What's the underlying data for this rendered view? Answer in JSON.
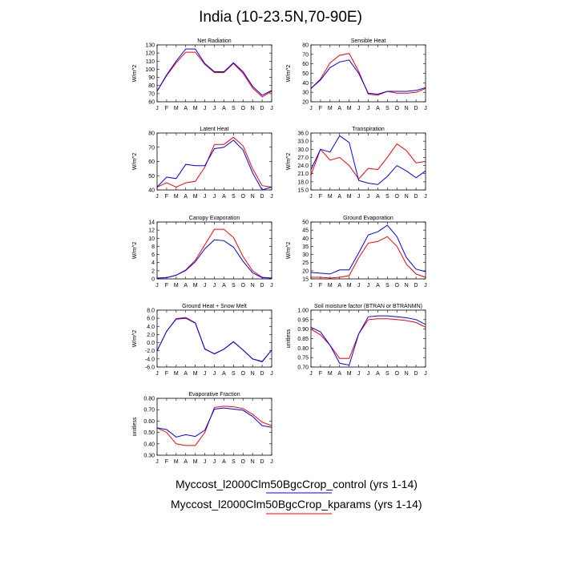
{
  "title": "India (10-23.5N,70-90E)",
  "series_colors": {
    "control": "#0000ff",
    "kparams": "#ff0000"
  },
  "legend": {
    "control": "Myccost_l2000Clm50BgcCrop_control (yrs 1-14)",
    "kparams": "Myccost_l2000Clm50BgcCrop_kparams (yrs 1-14)"
  },
  "chart_data": [
    {
      "type": "line",
      "title": "Net Radiation",
      "ylabel": "W/m^2",
      "x": [
        "J",
        "F",
        "M",
        "A",
        "M",
        "J",
        "J",
        "A",
        "S",
        "O",
        "N",
        "D",
        "J"
      ],
      "ylim": [
        60,
        130
      ],
      "yticks": [
        "60",
        "70",
        "80",
        "90",
        "100",
        "110",
        "120",
        "130"
      ],
      "series": [
        {
          "name": "control",
          "values": [
            73,
            93,
            110,
            125,
            125,
            107,
            97,
            97,
            108,
            97,
            79,
            68,
            74
          ]
        },
        {
          "name": "kparams",
          "values": [
            73,
            92,
            108,
            121,
            121,
            106,
            96,
            96,
            107,
            95,
            77,
            66,
            73
          ]
        }
      ]
    },
    {
      "type": "line",
      "title": "Sensible Heat",
      "ylabel": "W/m^2",
      "x": [
        "J",
        "F",
        "M",
        "A",
        "M",
        "J",
        "J",
        "A",
        "S",
        "O",
        "N",
        "D",
        "J"
      ],
      "ylim": [
        20,
        80
      ],
      "yticks": [
        "20",
        "30",
        "40",
        "50",
        "60",
        "70",
        "80"
      ],
      "series": [
        {
          "name": "control",
          "values": [
            34,
            43,
            56,
            62,
            64,
            50,
            29,
            28,
            31,
            31,
            31,
            32,
            35
          ]
        },
        {
          "name": "kparams",
          "values": [
            34,
            44,
            61,
            69,
            71,
            52,
            28,
            27,
            31,
            29,
            29,
            30,
            34
          ]
        }
      ]
    },
    {
      "type": "line",
      "title": "Latent Heat",
      "ylabel": "W/m^2",
      "x": [
        "J",
        "F",
        "M",
        "A",
        "M",
        "J",
        "J",
        "A",
        "S",
        "O",
        "N",
        "D",
        "J"
      ],
      "ylim": [
        40,
        80
      ],
      "yticks": [
        "40",
        "50",
        "60",
        "70",
        "80"
      ],
      "series": [
        {
          "name": "control",
          "values": [
            42,
            49,
            48,
            58,
            57,
            57,
            69,
            70,
            75,
            68,
            52,
            40,
            42
          ]
        },
        {
          "name": "kparams",
          "values": [
            42,
            45,
            42,
            45,
            46,
            56,
            72,
            72,
            77,
            71,
            55,
            43,
            42
          ]
        }
      ]
    },
    {
      "type": "line",
      "title": "Transpiration",
      "ylabel": "W/m^2",
      "x": [
        "J",
        "F",
        "M",
        "A",
        "M",
        "J",
        "J",
        "A",
        "S",
        "O",
        "N",
        "D",
        "J"
      ],
      "ylim": [
        15,
        36
      ],
      "yticks": [
        "15.0",
        "18.0",
        "21.0",
        "24.0",
        "27.0",
        "30.0",
        "33.0",
        "36.0"
      ],
      "series": [
        {
          "name": "control",
          "values": [
            22.5,
            30,
            29,
            35,
            32.5,
            18.5,
            17.5,
            17,
            20,
            24,
            22,
            19.5,
            22
          ]
        },
        {
          "name": "kparams",
          "values": [
            20.5,
            30,
            26,
            27,
            24,
            19,
            23,
            22.5,
            27,
            32,
            29.5,
            25,
            25.5
          ]
        }
      ]
    },
    {
      "type": "line",
      "title": "Canopy Evaporation",
      "ylabel": "W/m^2",
      "x": [
        "J",
        "F",
        "M",
        "A",
        "M",
        "J",
        "J",
        "A",
        "S",
        "O",
        "N",
        "D",
        "J"
      ],
      "ylim": [
        0,
        14
      ],
      "yticks": [
        "0",
        "2",
        "4",
        "6",
        "8",
        "10",
        "12",
        "14"
      ],
      "series": [
        {
          "name": "control",
          "values": [
            0.2,
            0.3,
            0.9,
            2.1,
            4.2,
            7.4,
            9.6,
            9.4,
            7.8,
            4.3,
            1.5,
            0.3,
            0.2
          ]
        },
        {
          "name": "kparams",
          "values": [
            0.2,
            0.3,
            0.9,
            2.2,
            4.6,
            8.4,
            12.2,
            12.2,
            10.2,
            5.5,
            2.0,
            0.4,
            0.2
          ]
        }
      ]
    },
    {
      "type": "line",
      "title": "Ground Evaporation",
      "ylabel": "W/m^2",
      "x": [
        "J",
        "F",
        "M",
        "A",
        "M",
        "J",
        "J",
        "A",
        "S",
        "O",
        "N",
        "D",
        "J"
      ],
      "ylim": [
        15,
        50
      ],
      "yticks": [
        "15",
        "20",
        "25",
        "30",
        "35",
        "40",
        "45",
        "50"
      ],
      "series": [
        {
          "name": "control",
          "values": [
            19,
            18.5,
            18,
            20.5,
            20.5,
            31,
            42,
            44,
            48,
            41,
            28,
            21,
            19.5
          ]
        },
        {
          "name": "kparams",
          "values": [
            16,
            16,
            15.5,
            16,
            17,
            28,
            37,
            38,
            41,
            35,
            24,
            18,
            16
          ]
        }
      ]
    },
    {
      "type": "line",
      "title": "Ground Heat + Snow Melt",
      "ylabel": "W/m^2",
      "x": [
        "J",
        "F",
        "M",
        "A",
        "M",
        "J",
        "J",
        "A",
        "S",
        "O",
        "N",
        "D",
        "J"
      ],
      "ylim": [
        -6,
        8
      ],
      "yticks": [
        "-6.0",
        "-4.0",
        "-2.0",
        "0.0",
        "2.0",
        "4.0",
        "6.0",
        "8.0"
      ],
      "series": [
        {
          "name": "control",
          "values": [
            -2,
            2.8,
            5.8,
            6,
            4.8,
            -1.6,
            -2.7,
            -1.6,
            0.2,
            -1.8,
            -4,
            -4.7,
            -1.8
          ]
        },
        {
          "name": "kparams",
          "values": [
            -2,
            2.8,
            5.9,
            6.2,
            4.9,
            -1.5,
            -2.8,
            -1.6,
            0.3,
            -1.8,
            -4,
            -4.6,
            -1.8
          ]
        }
      ]
    },
    {
      "type": "line",
      "title": "Soil moisture factor (BTRAN or BTRANMN)",
      "ylabel": "unitless",
      "x": [
        "J",
        "F",
        "M",
        "A",
        "M",
        "J",
        "J",
        "A",
        "S",
        "O",
        "N",
        "D",
        "J"
      ],
      "ylim": [
        0.7,
        1.0
      ],
      "yticks": [
        "0.70",
        "0.75",
        "0.80",
        "0.85",
        "0.90",
        "0.95",
        "1.00"
      ],
      "series": [
        {
          "name": "control",
          "values": [
            0.91,
            0.885,
            0.815,
            0.72,
            0.71,
            0.875,
            0.965,
            0.97,
            0.97,
            0.965,
            0.96,
            0.95,
            0.925
          ]
        },
        {
          "name": "kparams",
          "values": [
            0.9,
            0.87,
            0.815,
            0.745,
            0.745,
            0.875,
            0.95,
            0.955,
            0.955,
            0.95,
            0.945,
            0.935,
            0.91
          ]
        }
      ]
    },
    {
      "type": "line",
      "title": "Evaporative Fraction",
      "ylabel": "unitless",
      "x": [
        "J",
        "F",
        "M",
        "A",
        "M",
        "J",
        "J",
        "A",
        "S",
        "O",
        "N",
        "D",
        "J"
      ],
      "ylim": [
        0.3,
        0.8
      ],
      "yticks": [
        "0.30",
        "0.40",
        "0.50",
        "0.60",
        "0.70",
        "0.80"
      ],
      "series": [
        {
          "name": "control",
          "values": [
            0.54,
            0.525,
            0.46,
            0.48,
            0.465,
            0.52,
            0.705,
            0.715,
            0.705,
            0.695,
            0.64,
            0.56,
            0.545
          ]
        },
        {
          "name": "kparams",
          "values": [
            0.54,
            0.5,
            0.4,
            0.385,
            0.385,
            0.5,
            0.72,
            0.73,
            0.725,
            0.71,
            0.66,
            0.59,
            0.56
          ]
        }
      ]
    }
  ]
}
